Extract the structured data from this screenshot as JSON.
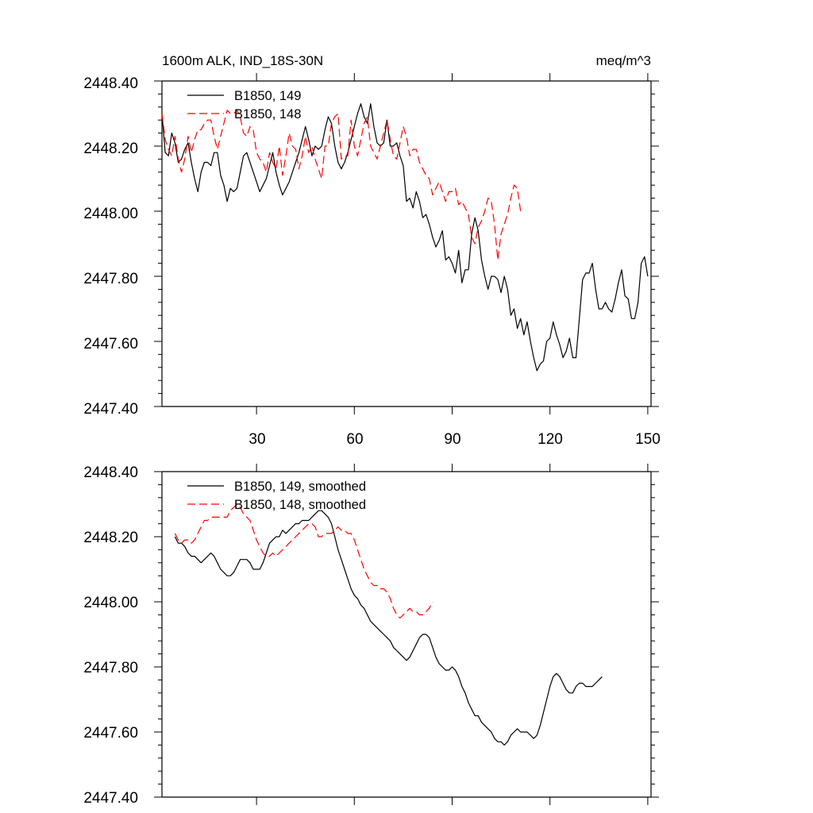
{
  "chart_data": [
    {
      "type": "line",
      "title_left": "1600m ALK, IND_18S-30N",
      "title_right": "meq/m^3",
      "xlabel": "",
      "ylabel": "",
      "xlim": [
        1,
        151
      ],
      "ylim": [
        2447.4,
        2448.4
      ],
      "y_tick_labels": [
        "2448.40",
        "2448.20",
        "2448.00",
        "2447.80",
        "2447.60",
        "2447.40"
      ],
      "x_tick_labels": [
        "30",
        "60",
        "90",
        "120",
        "150"
      ],
      "legend_position": "top-left",
      "series": [
        {
          "name": "B1850, 149",
          "color": "#000000",
          "style": "solid",
          "x_start": 1,
          "values": [
            2448.3,
            2448.18,
            2448.17,
            2448.24,
            2448.21,
            2448.15,
            2448.16,
            2448.19,
            2448.21,
            2448.15,
            2448.1,
            2448.06,
            2448.12,
            2448.15,
            2448.15,
            2448.14,
            2448.18,
            2448.18,
            2448.11,
            2448.08,
            2448.03,
            2448.07,
            2448.06,
            2448.07,
            2448.12,
            2448.17,
            2448.18,
            2448.15,
            2448.12,
            2448.09,
            2448.06,
            2448.08,
            2448.1,
            2448.14,
            2448.18,
            2448.12,
            2448.08,
            2448.05,
            2448.07,
            2448.09,
            2448.12,
            2448.15,
            2448.18,
            2448.22,
            2448.26,
            2448.22,
            2448.17,
            2448.2,
            2448.19,
            2448.2,
            2448.25,
            2448.29,
            2448.27,
            2448.2,
            2448.15,
            2448.13,
            2448.15,
            2448.18,
            2448.22,
            2448.26,
            2448.3,
            2448.33,
            2448.29,
            2448.27,
            2448.33,
            2448.26,
            2448.21,
            2448.2,
            2448.21,
            2448.28,
            2448.2,
            2448.2,
            2448.21,
            2448.17,
            2448.14,
            2448.03,
            2448.04,
            2448.01,
            2448.06,
            2448.03,
            2447.98,
            2447.99,
            2447.96,
            2447.92,
            2447.89,
            2447.91,
            2447.94,
            2447.85,
            2447.86,
            2447.84,
            2447.81,
            2447.88,
            2447.78,
            2447.82,
            2447.82,
            2447.93,
            2447.98,
            2447.94,
            2447.85,
            2447.8,
            2447.76,
            2447.8,
            2447.8,
            2447.79,
            2447.75,
            2447.8,
            2447.76,
            2447.68,
            2447.7,
            2447.64,
            2447.67,
            2447.62,
            2447.66,
            2447.6,
            2447.55,
            2447.51,
            2447.53,
            2447.54,
            2447.6,
            2447.61,
            2447.66,
            2447.62,
            2447.59,
            2447.55,
            2447.57,
            2447.61,
            2447.55,
            2447.55,
            2447.67,
            2447.79,
            2447.81,
            2447.81,
            2447.84,
            2447.76,
            2447.7,
            2447.7,
            2447.72,
            2447.7,
            2447.69,
            2447.73,
            2447.78,
            2447.82,
            2447.74,
            2447.73,
            2447.67,
            2447.67,
            2447.72,
            2447.84,
            2447.86,
            2447.8
          ]
        },
        {
          "name": "B1850, 148",
          "color": "#ff0000",
          "style": "dashed",
          "x_start": 1,
          "values": [
            2448.3,
            2448.22,
            2448.19,
            2448.17,
            2448.23,
            2448.16,
            2448.12,
            2448.16,
            2448.23,
            2448.18,
            2448.22,
            2448.25,
            2448.25,
            2448.27,
            2448.28,
            2448.28,
            2448.23,
            2448.19,
            2448.23,
            2448.27,
            2448.31,
            2448.3,
            2448.3,
            2448.31,
            2448.29,
            2448.24,
            2448.23,
            2448.26,
            2448.25,
            2448.18,
            2448.16,
            2448.15,
            2448.12,
            2448.18,
            2448.15,
            2448.13,
            2448.2,
            2448.11,
            2448.17,
            2448.24,
            2448.2,
            2448.19,
            2448.13,
            2448.17,
            2448.23,
            2448.18,
            2448.2,
            2448.16,
            2448.13,
            2448.1,
            2448.2,
            2448.2,
            2448.27,
            2448.29,
            2448.3,
            2448.16,
            2448.17,
            2448.17,
            2448.28,
            2448.2,
            2448.17,
            2448.22,
            2448.27,
            2448.29,
            2448.2,
            2448.18,
            2448.16,
            2448.2,
            2448.24,
            2448.28,
            2448.22,
            2448.17,
            2448.16,
            2448.21,
            2448.26,
            2448.23,
            2448.17,
            2448.19,
            2448.19,
            2448.15,
            2448.13,
            2448.11,
            2448.1,
            2448.05,
            2448.07,
            2448.09,
            2448.06,
            2448.03,
            2448.06,
            2448.06,
            2448.07,
            2448.02,
            2448.03,
            2448.01,
            2447.99,
            2447.92,
            2447.9,
            2447.95,
            2447.97,
            2448.0,
            2448.04,
            2448.03,
            2447.96,
            2447.85,
            2447.93,
            2447.96,
            2447.99,
            2448.04,
            2448.08,
            2448.07,
            2448.0
          ]
        }
      ]
    },
    {
      "type": "line",
      "title_left": "",
      "title_right": "",
      "xlabel": "",
      "ylabel": "",
      "xlim": [
        1,
        151
      ],
      "ylim": [
        2447.4,
        2448.4
      ],
      "y_tick_labels": [
        "2448.40",
        "2448.20",
        "2448.00",
        "2447.80",
        "2447.60",
        "2447.40"
      ],
      "x_tick_labels": [],
      "legend_position": "top-left",
      "series": [
        {
          "name": "B1850, 149, smoothed",
          "color": "#000000",
          "style": "solid",
          "x_start": 5,
          "values": [
            2448.2,
            2448.18,
            2448.18,
            2448.17,
            2448.15,
            2448.14,
            2448.14,
            2448.13,
            2448.12,
            2448.13,
            2448.14,
            2448.15,
            2448.14,
            2448.12,
            2448.1,
            2448.09,
            2448.08,
            2448.08,
            2448.09,
            2448.11,
            2448.13,
            2448.13,
            2448.13,
            2448.12,
            2448.1,
            2448.1,
            2448.1,
            2448.12,
            2448.15,
            2448.18,
            2448.19,
            2448.2,
            2448.2,
            2448.22,
            2448.21,
            2448.22,
            2448.23,
            2448.24,
            2448.24,
            2448.25,
            2448.25,
            2448.25,
            2448.26,
            2448.27,
            2448.28,
            2448.28,
            2448.27,
            2448.26,
            2448.24,
            2448.2,
            2448.16,
            2448.13,
            2448.1,
            2448.07,
            2448.04,
            2448.02,
            2448.01,
            2447.99,
            2447.98,
            2447.96,
            2447.94,
            2447.93,
            2447.92,
            2447.91,
            2447.9,
            2447.89,
            2447.88,
            2447.86,
            2447.85,
            2447.84,
            2447.83,
            2447.82,
            2447.83,
            2447.85,
            2447.87,
            2447.89,
            2447.9,
            2447.9,
            2447.89,
            2447.86,
            2447.83,
            2447.81,
            2447.8,
            2447.79,
            2447.79,
            2447.8,
            2447.79,
            2447.77,
            2447.74,
            2447.72,
            2447.69,
            2447.67,
            2447.65,
            2447.65,
            2447.63,
            2447.62,
            2447.61,
            2447.6,
            2447.58,
            2447.57,
            2447.57,
            2447.56,
            2447.57,
            2447.59,
            2447.6,
            2447.61,
            2447.6,
            2447.6,
            2447.6,
            2447.59,
            2447.58,
            2447.59,
            2447.62,
            2447.66,
            2447.7,
            2447.74,
            2447.77,
            2447.78,
            2447.77,
            2447.75,
            2447.73,
            2447.72,
            2447.72,
            2447.74,
            2447.75,
            2447.75,
            2447.74,
            2447.74,
            2447.74,
            2447.75,
            2447.76,
            2447.77
          ]
        },
        {
          "name": "B1850, 148, smoothed",
          "color": "#ff0000",
          "style": "dashed",
          "x_start": 5,
          "values": [
            2448.21,
            2448.19,
            2448.18,
            2448.19,
            2448.19,
            2448.18,
            2448.19,
            2448.21,
            2448.23,
            2448.25,
            2448.25,
            2448.26,
            2448.26,
            2448.26,
            2448.26,
            2448.26,
            2448.26,
            2448.28,
            2448.29,
            2448.3,
            2448.29,
            2448.27,
            2448.26,
            2448.25,
            2448.22,
            2448.19,
            2448.17,
            2448.15,
            2448.14,
            2448.14,
            2448.15,
            2448.14,
            2448.15,
            2448.16,
            2448.17,
            2448.18,
            2448.19,
            2448.2,
            2448.21,
            2448.22,
            2448.23,
            2448.24,
            2448.24,
            2448.23,
            2448.2,
            2448.2,
            2448.21,
            2448.21,
            2448.21,
            2448.22,
            2448.23,
            2448.22,
            2448.22,
            2448.21,
            2448.21,
            2448.19,
            2448.16,
            2448.13,
            2448.1,
            2448.08,
            2448.06,
            2448.05,
            2448.05,
            2448.04,
            2448.04,
            2448.03,
            2448.01,
            2447.98,
            2447.96,
            2447.95,
            2447.96,
            2447.97,
            2447.98,
            2447.97,
            2447.97,
            2447.96,
            2447.96,
            2447.97,
            2447.98,
            2448.0
          ]
        }
      ]
    }
  ]
}
